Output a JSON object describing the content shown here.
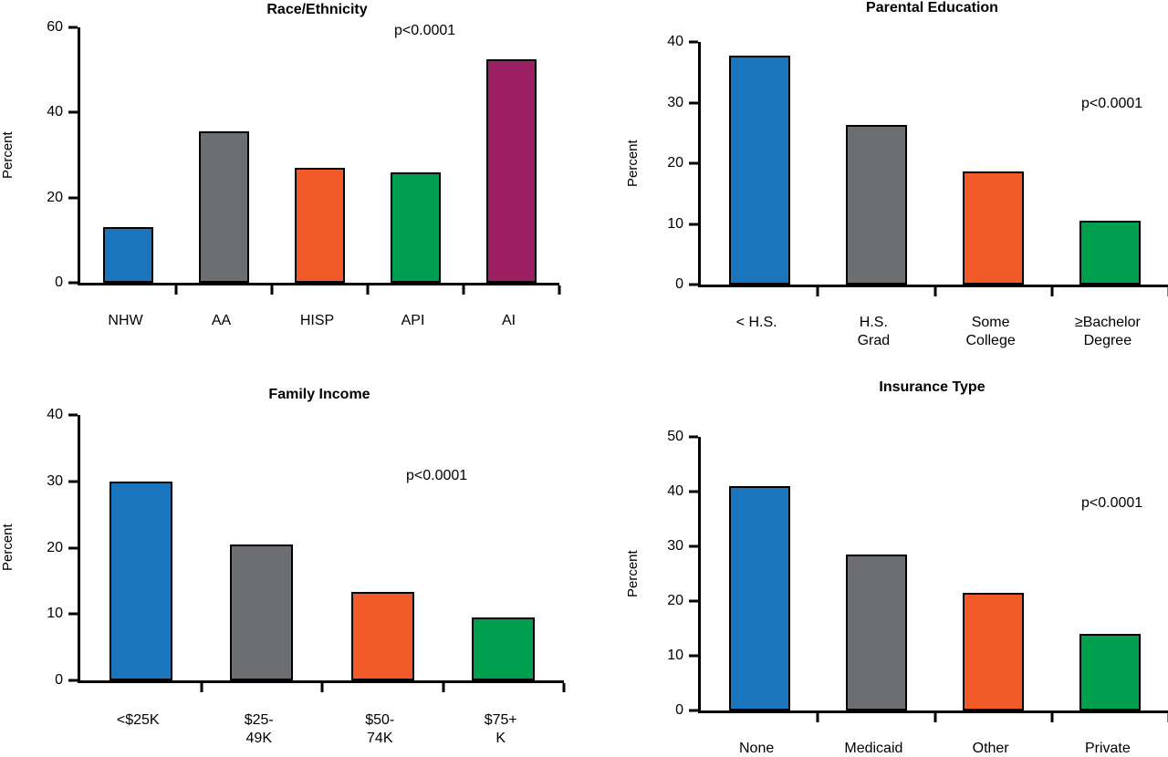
{
  "figure": {
    "background": "#ffffff",
    "p_value_text": "p<0.0001"
  },
  "colors": {
    "blue": "#1b75bc",
    "gray": "#6d6e71",
    "orange": "#f15a29",
    "green": "#009e4f",
    "magenta": "#9c1e63",
    "axis": "#000000"
  },
  "chart_data": [
    {
      "type": "bar",
      "title": "Race/Ethnicity",
      "ylabel": "Percent",
      "annotation": "p<0.0001",
      "categories": [
        "NHW",
        "AA",
        "HISP",
        "API",
        "AI"
      ],
      "values": [
        13,
        35.5,
        27,
        26,
        52.5
      ],
      "bar_colors": [
        "#1b75bc",
        "#6d6e71",
        "#f15a29",
        "#009e4f",
        "#9c1e63"
      ],
      "ylim": [
        0,
        60
      ],
      "yticks": [
        0,
        20,
        40,
        60
      ],
      "grid": false,
      "legend": "none"
    },
    {
      "type": "bar",
      "title": "Parental Education",
      "ylabel": "Percent",
      "annotation": "p<0.0001",
      "categories": [
        "< H.S.",
        "H.S.\nGrad",
        "Some\nCollege",
        "≥Bachelor\nDegree"
      ],
      "values": [
        37.8,
        26.3,
        18.7,
        10.5
      ],
      "bar_colors": [
        "#1b75bc",
        "#6d6e71",
        "#f15a29",
        "#009e4f"
      ],
      "ylim": [
        0,
        40
      ],
      "yticks": [
        0,
        10,
        20,
        30,
        40
      ],
      "grid": false,
      "legend": "none"
    },
    {
      "type": "bar",
      "title": "Family Income",
      "ylabel": "Percent",
      "annotation": "p<0.0001",
      "categories": [
        "<$25K",
        "$25-\n49K",
        "$50-\n74K",
        "$75+\nK"
      ],
      "values": [
        30,
        20.5,
        13.3,
        9.5
      ],
      "bar_colors": [
        "#1b75bc",
        "#6d6e71",
        "#f15a29",
        "#009e4f"
      ],
      "ylim": [
        0,
        40
      ],
      "yticks": [
        0,
        10,
        20,
        30,
        40
      ],
      "grid": false,
      "legend": "none"
    },
    {
      "type": "bar",
      "title": "Insurance Type",
      "ylabel": "Percent",
      "annotation": "p<0.0001",
      "categories": [
        "None",
        "Medicaid",
        "Other",
        "Private"
      ],
      "values": [
        41,
        28.5,
        21.5,
        14
      ],
      "bar_colors": [
        "#1b75bc",
        "#6d6e71",
        "#f15a29",
        "#009e4f"
      ],
      "ylim": [
        0,
        50
      ],
      "yticks": [
        0,
        10,
        20,
        30,
        40,
        50
      ],
      "grid": false,
      "legend": "none"
    }
  ]
}
